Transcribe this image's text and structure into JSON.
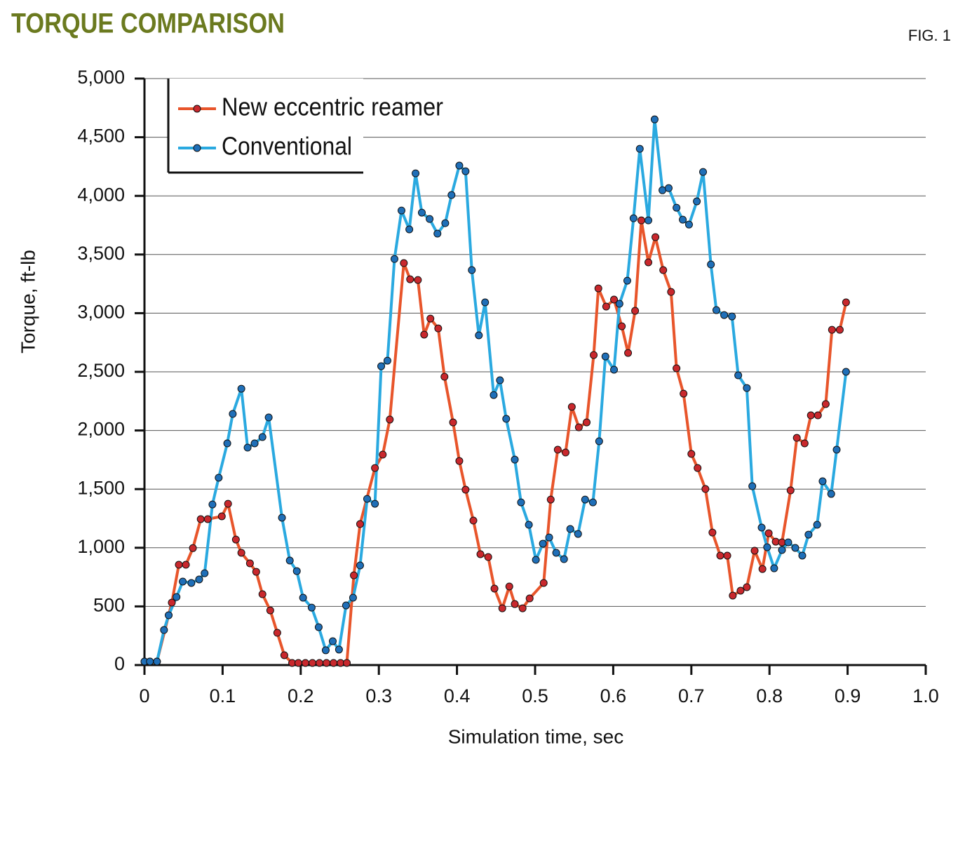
{
  "chart_data": {
    "type": "line",
    "title": "TORQUE COMPARISON",
    "figure_label": "FIG. 1",
    "xlabel": "Simulation time, sec",
    "ylabel": "Torque, ft-lb",
    "xlim": [
      0,
      1
    ],
    "ylim": [
      0,
      5000
    ],
    "xticks": [
      0,
      0.1,
      0.2,
      0.3,
      0.4,
      0.5,
      0.6,
      0.7,
      0.8,
      0.9,
      {
        "value": 1,
        "label": "1.0"
      }
    ],
    "yticks": [
      0,
      500,
      {
        "value": 1000,
        "label": "1,000"
      },
      {
        "value": 1500,
        "label": "1,500"
      },
      {
        "value": 2000,
        "label": "2,000"
      },
      {
        "value": 2500,
        "label": "2,500"
      },
      {
        "value": 3000,
        "label": "3,000"
      },
      {
        "value": 3500,
        "label": "3,500"
      },
      {
        "value": 4000,
        "label": "4,000"
      },
      {
        "value": 4500,
        "label": "4,500"
      },
      {
        "value": 5000,
        "label": "5,000"
      }
    ],
    "grid": true,
    "legend": "upper left",
    "series": [
      {
        "name": "New eccentric reamer",
        "color": "#e8552b",
        "marker_color": "#c9282d",
        "x": [
          0,
          0.007,
          0.016,
          0.035,
          0.044,
          0.053,
          0.062,
          0.072,
          0.081,
          0.099,
          0.107,
          0.117,
          0.124,
          0.135,
          0.143,
          0.151,
          0.161,
          0.17,
          0.179,
          0.189,
          0.197,
          0.206,
          0.215,
          0.224,
          0.233,
          0.242,
          0.251,
          0.259,
          0.268,
          0.276,
          0.295,
          0.305,
          0.314,
          0.332,
          0.34,
          0.35,
          0.358,
          0.366,
          0.376,
          0.384,
          0.395,
          0.403,
          0.411,
          0.421,
          0.43,
          0.44,
          0.448,
          0.458,
          0.467,
          0.474,
          0.484,
          0.493,
          0.511,
          0.52,
          0.529,
          0.539,
          0.547,
          0.556,
          0.566,
          0.575,
          0.581,
          0.591,
          0.601,
          0.611,
          0.619,
          0.628,
          0.636,
          0.645,
          0.654,
          0.664,
          0.674,
          0.681,
          0.69,
          0.7,
          0.708,
          0.718,
          0.727,
          0.737,
          0.746,
          0.753,
          0.763,
          0.771,
          0.781,
          0.791,
          0.799,
          0.808,
          0.816,
          0.827,
          0.835,
          0.845,
          0.853,
          0.862,
          0.872,
          0.88,
          0.89,
          0.898
        ],
        "values": [
          30,
          30,
          30,
          532,
          855,
          855,
          997,
          1244,
          1244,
          1268,
          1375,
          1070,
          957,
          867,
          795,
          604,
          466,
          275,
          84,
          18,
          18,
          18,
          18,
          18,
          18,
          18,
          18,
          18,
          765,
          1202,
          1680,
          1794,
          2093,
          3427,
          3289,
          3283,
          2817,
          2954,
          2870,
          2458,
          2069,
          1740,
          1495,
          1232,
          945,
          921,
          652,
          484,
          670,
          520,
          484,
          568,
          700,
          1411,
          1836,
          1812,
          2201,
          2027,
          2069,
          2643,
          3211,
          3056,
          3116,
          2888,
          2661,
          3020,
          3791,
          3433,
          3648,
          3367,
          3181,
          2530,
          2314,
          1800,
          1680,
          1501,
          1130,
          933,
          933,
          592,
          634,
          664,
          975,
          819,
          1124,
          1052,
          1046,
          1489,
          1937,
          1890,
          2129,
          2129,
          2225,
          2858,
          2858,
          3092
        ]
      },
      {
        "name": "Conventional",
        "color": "#2aa9e0",
        "marker_color": "#1f6fb8",
        "x": [
          0,
          0.007,
          0.016,
          0.025,
          0.031,
          0.041,
          0.049,
          0.06,
          0.07,
          0.077,
          0.087,
          0.095,
          0.106,
          0.113,
          0.124,
          0.132,
          0.141,
          0.151,
          0.159,
          0.176,
          0.186,
          0.195,
          0.203,
          0.214,
          0.223,
          0.232,
          0.241,
          0.249,
          0.258,
          0.267,
          0.276,
          0.285,
          0.295,
          0.303,
          0.311,
          0.32,
          0.329,
          0.339,
          0.347,
          0.355,
          0.365,
          0.375,
          0.385,
          0.393,
          0.403,
          0.411,
          0.419,
          0.428,
          0.436,
          0.447,
          0.455,
          0.463,
          0.474,
          0.482,
          0.492,
          0.501,
          0.51,
          0.518,
          0.527,
          0.537,
          0.545,
          0.555,
          0.564,
          0.574,
          0.582,
          0.59,
          0.601,
          0.608,
          0.618,
          0.626,
          0.634,
          0.645,
          0.653,
          0.663,
          0.671,
          0.681,
          0.689,
          0.697,
          0.707,
          0.715,
          0.725,
          0.732,
          0.742,
          0.752,
          0.76,
          0.771,
          0.778,
          0.79,
          0.797,
          0.806,
          0.816,
          0.824,
          0.833,
          0.842,
          0.85,
          0.861,
          0.868,
          0.879,
          0.886,
          0.898
        ],
        "values": [
          30,
          30,
          30,
          299,
          425,
          580,
          712,
          700,
          730,
          783,
          1369,
          1597,
          1890,
          2141,
          2356,
          1854,
          1890,
          1944,
          2111,
          1256,
          891,
          801,
          574,
          490,
          323,
          126,
          203,
          132,
          508,
          574,
          849,
          1417,
          1375,
          2548,
          2595,
          3462,
          3875,
          3714,
          4192,
          3857,
          3803,
          3678,
          3767,
          4007,
          4258,
          4210,
          3367,
          2811,
          3092,
          2302,
          2428,
          2099,
          1752,
          1387,
          1196,
          897,
          1035,
          1088,
          957,
          903,
          1160,
          1118,
          1411,
          1387,
          1908,
          2631,
          2518,
          3080,
          3277,
          3809,
          4401,
          3791,
          4652,
          4048,
          4066,
          3899,
          3797,
          3755,
          3953,
          4204,
          3415,
          3026,
          2984,
          2972,
          2470,
          2362,
          1525,
          1172,
          1005,
          825,
          981,
          1046,
          999,
          933,
          1112,
          1196,
          1567,
          1459,
          1836,
          2500
        ]
      }
    ]
  }
}
